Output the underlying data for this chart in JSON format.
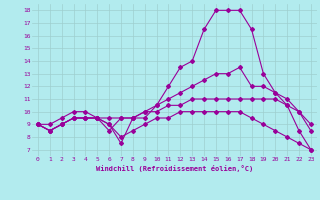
{
  "xlabel": "Windchill (Refroidissement éolien,°C)",
  "background_color": "#b2ebee",
  "line_color": "#990099",
  "xlim": [
    -0.5,
    23.5
  ],
  "ylim": [
    6.5,
    18.5
  ],
  "xticks": [
    0,
    1,
    2,
    3,
    4,
    5,
    6,
    7,
    8,
    9,
    10,
    11,
    12,
    13,
    14,
    15,
    16,
    17,
    18,
    19,
    20,
    21,
    22,
    23
  ],
  "yticks": [
    7,
    8,
    9,
    10,
    11,
    12,
    13,
    14,
    15,
    16,
    17,
    18
  ],
  "line1": [
    9,
    9,
    9.5,
    10,
    10,
    9.5,
    9,
    7.5,
    9.5,
    9.5,
    10.5,
    12,
    13.5,
    14,
    16.5,
    18,
    18,
    18,
    16.5,
    13,
    11.5,
    10.5,
    8.5,
    7
  ],
  "line2": [
    9,
    8.5,
    9,
    9.5,
    9.5,
    9.5,
    8.5,
    9.5,
    9.5,
    10,
    10.5,
    11,
    11.5,
    12,
    12.5,
    13,
    13,
    13.5,
    12,
    12,
    11.5,
    11,
    10,
    8.5
  ],
  "line3": [
    9,
    8.5,
    9,
    9.5,
    9.5,
    9.5,
    9.5,
    9.5,
    9.5,
    10,
    10,
    10.5,
    10.5,
    11,
    11,
    11,
    11,
    11,
    11,
    11,
    11,
    10.5,
    10,
    9
  ],
  "line4": [
    9,
    8.5,
    9,
    9.5,
    9.5,
    9.5,
    9,
    8,
    8.5,
    9,
    9.5,
    9.5,
    10,
    10,
    10,
    10,
    10,
    10,
    9.5,
    9,
    8.5,
    8,
    7.5,
    7
  ]
}
